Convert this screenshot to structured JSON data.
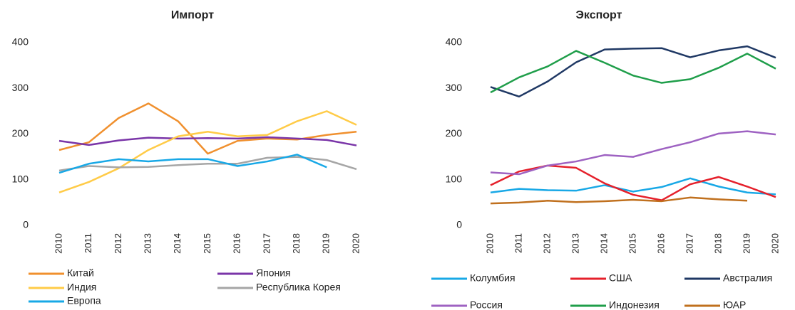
{
  "chart_data": [
    {
      "type": "line",
      "title": "Импорт",
      "categories": [
        "2010",
        "2011",
        "2012",
        "2013",
        "2014",
        "2015",
        "2016",
        "2017",
        "2018",
        "2019",
        "2020"
      ],
      "ylim": [
        0,
        400
      ],
      "yticks": [
        0,
        100,
        200,
        300,
        400
      ],
      "grid": false,
      "series": [
        {
          "name": "Китай",
          "color": "#f0902e",
          "values": [
            165,
            182,
            235,
            267,
            228,
            157,
            185,
            190,
            188,
            198,
            205
          ]
        },
        {
          "name": "Япония",
          "color": "#7a35a8",
          "values": [
            185,
            176,
            186,
            192,
            190,
            191,
            190,
            193,
            190,
            187,
            175
          ]
        },
        {
          "name": "Индия",
          "color": "#ffcb47",
          "values": [
            72,
            95,
            125,
            165,
            195,
            205,
            195,
            198,
            228,
            250,
            220
          ]
        },
        {
          "name": "Республика Корея",
          "color": "#a6a6a6",
          "values": [
            120,
            130,
            127,
            128,
            132,
            135,
            135,
            148,
            150,
            143,
            123
          ]
        },
        {
          "name": "Европа",
          "color": "#18a8e6",
          "values": [
            115,
            135,
            145,
            140,
            145,
            145,
            130,
            140,
            155,
            127,
            null
          ]
        }
      ]
    },
    {
      "type": "line",
      "title": "Экспорт",
      "categories": [
        "2010",
        "2011",
        "2012",
        "2013",
        "2014",
        "2015",
        "2016",
        "2017",
        "2018",
        "2019",
        "2020"
      ],
      "ylim": [
        0,
        400
      ],
      "yticks": [
        0,
        100,
        200,
        300,
        400
      ],
      "grid": false,
      "series": [
        {
          "name": "Колумбия",
          "color": "#18a8e6",
          "values": [
            72,
            80,
            77,
            76,
            88,
            74,
            84,
            103,
            85,
            72,
            68
          ]
        },
        {
          "name": "США",
          "color": "#e5202b",
          "values": [
            88,
            118,
            131,
            126,
            92,
            67,
            55,
            90,
            106,
            85,
            62
          ]
        },
        {
          "name": "Австралия",
          "color": "#1f3864",
          "values": [
            303,
            282,
            315,
            357,
            385,
            387,
            388,
            368,
            383,
            392,
            367
          ]
        },
        {
          "name": "Россия",
          "color": "#9e62c2",
          "values": [
            116,
            112,
            131,
            140,
            154,
            150,
            167,
            182,
            201,
            206,
            199
          ]
        },
        {
          "name": "Индонезия",
          "color": "#1f9e4a",
          "values": [
            291,
            324,
            348,
            382,
            356,
            328,
            312,
            320,
            345,
            376,
            343
          ]
        },
        {
          "name": "ЮАР",
          "color": "#c0701e",
          "values": [
            48,
            50,
            54,
            51,
            53,
            56,
            53,
            61,
            57,
            54,
            null
          ]
        }
      ]
    }
  ]
}
